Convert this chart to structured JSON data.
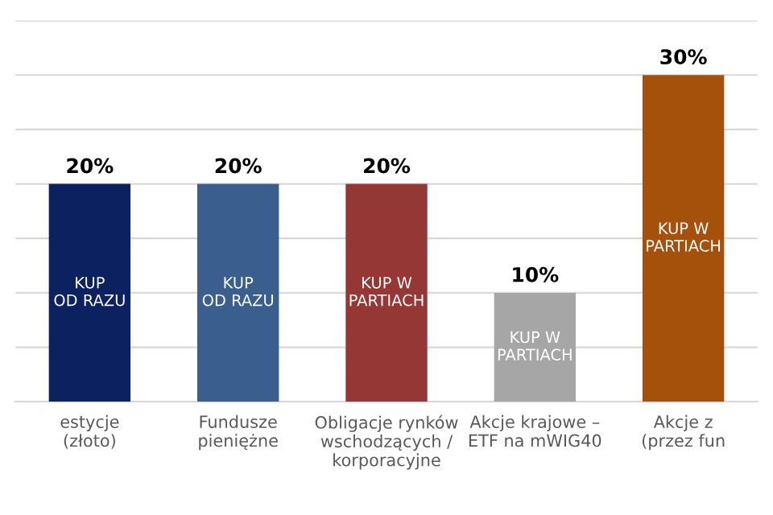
{
  "chart_data": {
    "type": "bar",
    "categories": [
      "estycje\n(złoto)",
      "Fundusze\npieniężne",
      "Obligacje rynków\nwschodzących /\nkorporacyjne",
      "Akcje krajowe –\nETF na mWIG40",
      "Akcje z\n(przez fun"
    ],
    "values": [
      20,
      20,
      20,
      10,
      30
    ],
    "colors": [
      "#0b2160",
      "#3a5f8f",
      "#953735",
      "#a6a6a6",
      "#a5510c"
    ],
    "value_labels": [
      "20%",
      "20%",
      "20%",
      "10%",
      "30%"
    ],
    "ylim": [
      0,
      35
    ],
    "yticks": [
      {
        "value": 0,
        "label": null
      },
      {
        "value": 5,
        "label": null
      },
      {
        "value": 10,
        "label": null
      },
      {
        "value": 15,
        "label": null
      },
      {
        "value": 20,
        "label": null
      },
      {
        "value": 25,
        "label": null
      },
      {
        "value": 30,
        "label": null
      },
      {
        "value": 35,
        "label": null
      }
    ],
    "grid": "y",
    "annotations": [
      "KUP\nOD RAZU",
      "KUP\nOD RAZU",
      "KUP W\nPARTIACH",
      "KUP W\nPARTIACH",
      "KUP W\nPARTIACH"
    ]
  }
}
